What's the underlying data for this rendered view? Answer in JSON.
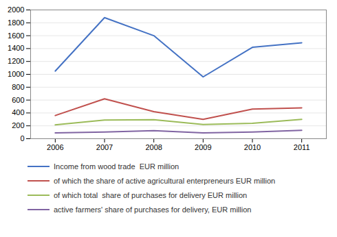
{
  "chart_data": {
    "type": "line",
    "x": [
      2006,
      2007,
      2008,
      2009,
      2010,
      2011
    ],
    "series": [
      {
        "name": "Income from wood trade  EUR million",
        "color": "#4472C4",
        "values": [
          1050,
          1880,
          1600,
          960,
          1420,
          1490
        ]
      },
      {
        "name": "of which the share of active agricultural enterpreneurs EUR million",
        "color": "#C0504D",
        "values": [
          360,
          620,
          420,
          300,
          460,
          480
        ]
      },
      {
        "name": "of which total  share of purchases for delivery EUR million",
        "color": "#9BBB59",
        "values": [
          215,
          290,
          295,
          220,
          240,
          300
        ]
      },
      {
        "name": "active farmers' share of purchases for delivery, EUR million",
        "color": "#8064A2",
        "values": [
          90,
          105,
          125,
          90,
          105,
          130
        ]
      }
    ],
    "xlim": [
      2005.5,
      2011.5
    ],
    "xticks": [
      2006,
      2007,
      2008,
      2009,
      2010,
      2011
    ],
    "ylim": [
      0,
      2000
    ],
    "yticks": [
      0,
      200,
      400,
      600,
      800,
      1000,
      1200,
      1400,
      1600,
      1800,
      2000
    ],
    "grid": true
  }
}
